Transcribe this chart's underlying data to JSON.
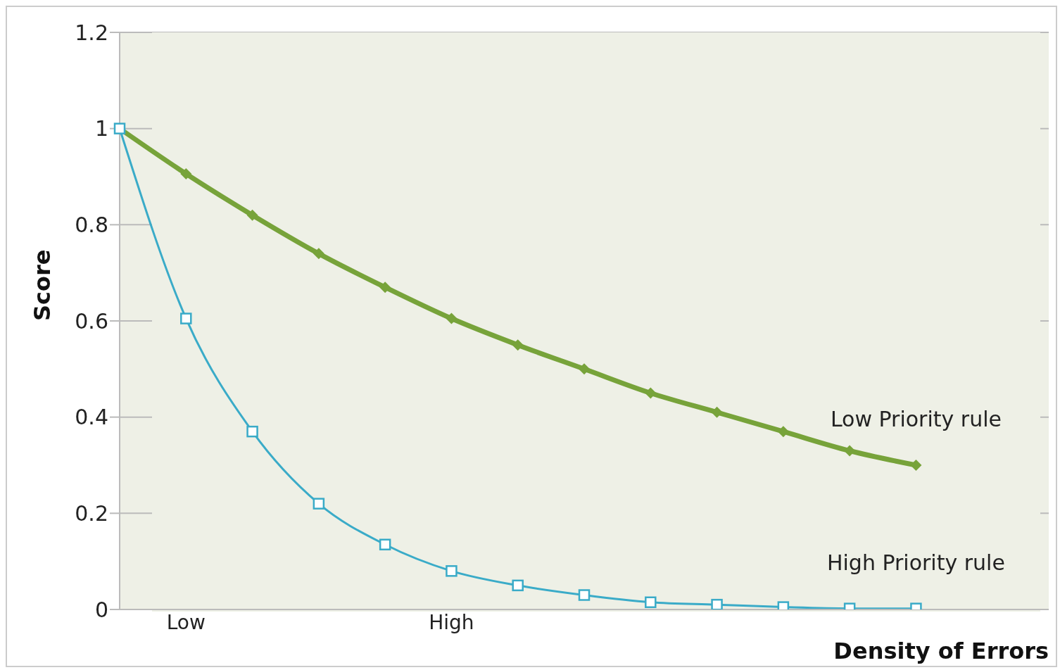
{
  "chart_data": {
    "type": "line",
    "xlabel": "Density of Errors",
    "ylabel": "Score",
    "categories": [
      null,
      "Low",
      null,
      null,
      null,
      "High",
      null,
      null,
      null,
      null,
      null,
      null,
      null,
      null,
      null
    ],
    "ylim": [
      0,
      1.2
    ],
    "yticks": [
      0,
      0.2,
      0.4,
      0.6,
      0.8,
      1,
      1.2
    ],
    "grid": "y",
    "legend": false,
    "series": [
      {
        "name": "Low Priority rule",
        "color": "#77a33a",
        "marker": "diamond",
        "values": [
          1,
          0.906,
          0.82,
          0.74,
          0.67,
          0.605,
          0.55,
          0.5,
          0.45,
          0.41,
          0.37,
          0.33,
          0.3,
          null,
          null
        ]
      },
      {
        "name": "High Priority rule",
        "color": "#3aabc8",
        "marker": "square",
        "values": [
          1,
          0.605,
          0.37,
          0.22,
          0.135,
          0.08,
          0.05,
          0.03,
          0.015,
          0.01,
          0.005,
          0.002,
          0.002,
          null,
          null
        ]
      }
    ]
  }
}
